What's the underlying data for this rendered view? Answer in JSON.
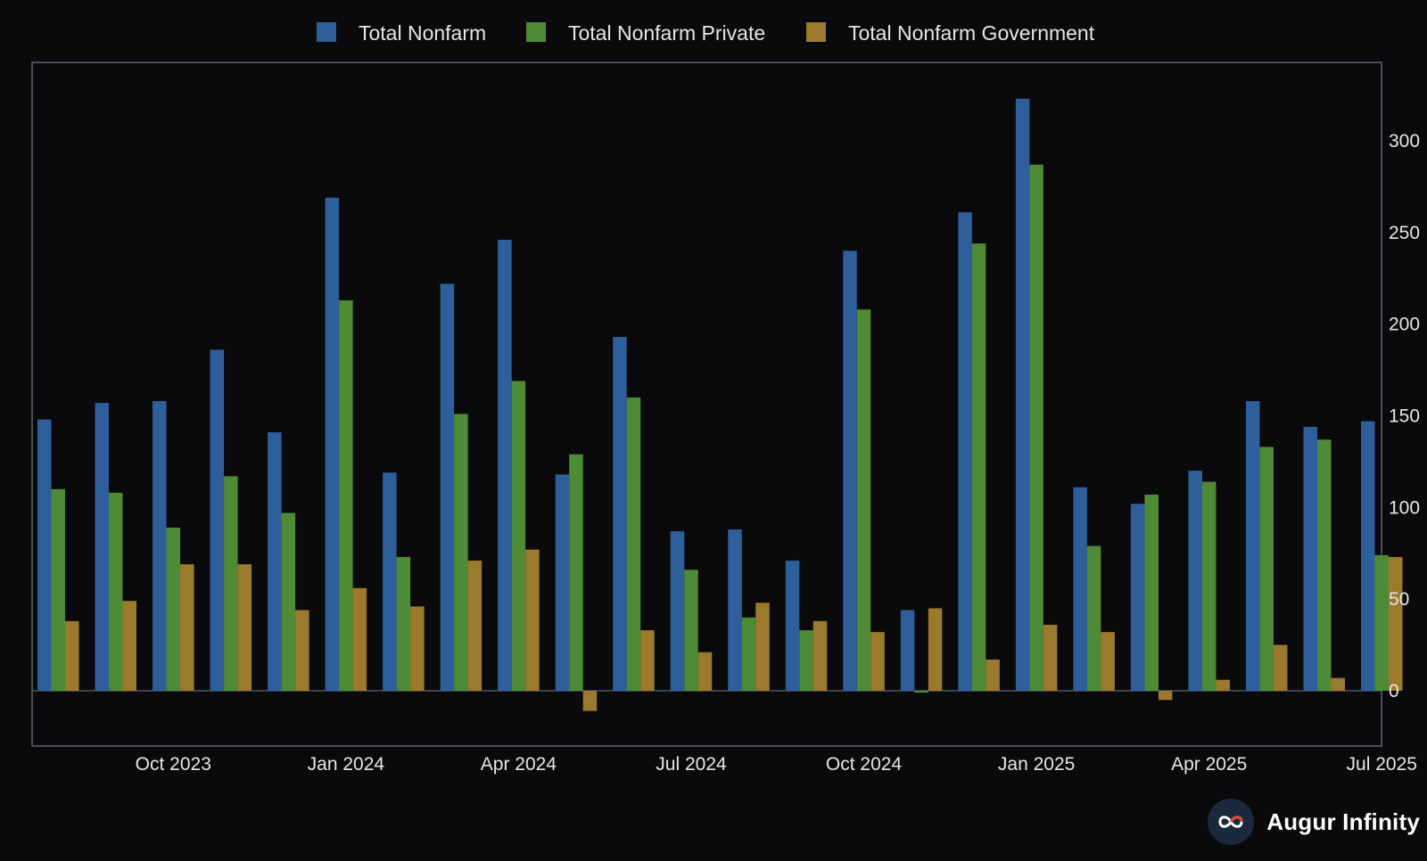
{
  "chart_data": {
    "type": "bar",
    "categories": [
      "2023-08",
      "2023-09",
      "2023-10",
      "2023-11",
      "2023-12",
      "2024-01",
      "2024-02",
      "2024-03",
      "2024-04",
      "2024-05",
      "2024-06",
      "2024-07",
      "2024-08",
      "2024-09",
      "2024-10",
      "2024-11",
      "2024-12",
      "2025-01",
      "2025-02",
      "2025-03",
      "2025-04",
      "2025-05",
      "2025-06",
      "2025-07"
    ],
    "series": [
      {
        "name": "Total Nonfarm",
        "color": "#2e5f9b",
        "values": [
          148,
          157,
          158,
          186,
          141,
          269,
          119,
          222,
          246,
          118,
          193,
          87,
          88,
          71,
          240,
          44,
          261,
          323,
          111,
          102,
          120,
          158,
          144,
          147
        ]
      },
      {
        "name": "Total Nonfarm Private",
        "color": "#4f8a36",
        "values": [
          110,
          108,
          89,
          117,
          97,
          213,
          73,
          151,
          169,
          129,
          160,
          66,
          40,
          33,
          208,
          -1,
          244,
          287,
          79,
          107,
          114,
          133,
          137,
          74
        ]
      },
      {
        "name": "Total Nonfarm Government",
        "color": "#9b7a2e",
        "values": [
          38,
          49,
          69,
          69,
          44,
          56,
          46,
          71,
          77,
          -11,
          33,
          21,
          48,
          38,
          32,
          45,
          17,
          36,
          32,
          -5,
          6,
          25,
          7,
          73
        ]
      }
    ],
    "yticks": [
      0,
      50,
      100,
      150,
      200,
      250,
      300
    ],
    "ylim": [
      -30,
      345
    ],
    "y_axis_side": "right",
    "xtick_labels": [
      {
        "label": "Oct 2023",
        "at": "2023-10"
      },
      {
        "label": "Jan 2024",
        "at": "2024-01"
      },
      {
        "label": "Apr 2024",
        "at": "2024-04"
      },
      {
        "label": "Jul 2024",
        "at": "2024-07"
      },
      {
        "label": "Oct 2024",
        "at": "2024-10"
      },
      {
        "label": "Jan 2025",
        "at": "2025-01"
      },
      {
        "label": "Apr 2025",
        "at": "2025-04"
      },
      {
        "label": "Jul 2025",
        "at": "2025-07"
      }
    ],
    "legend_position": "top-center",
    "grid": false
  },
  "brand": {
    "name": "Augur Infinity"
  }
}
